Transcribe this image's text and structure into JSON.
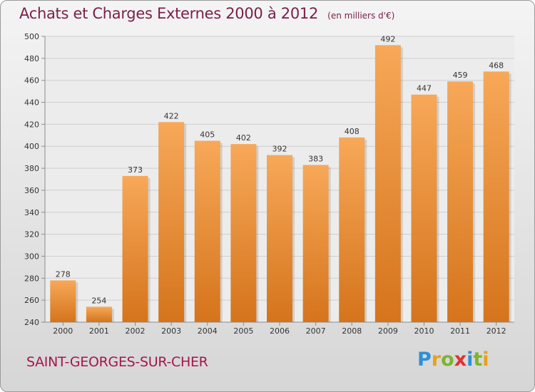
{
  "header": {
    "title": "Achats et Charges Externes 2000 à 2012",
    "unit": "(en milliers d'€)"
  },
  "commune": "SAINT-GEORGES-SUR-CHER",
  "logo": {
    "text": "Proxiti",
    "letter_colors": [
      "#2f8fd6",
      "#e8a020",
      "#7cb530",
      "#e03030",
      "#2f8fd6",
      "#7cb530",
      "#e8a020"
    ]
  },
  "colors": {
    "bar_light": "#f7a858",
    "bar_dark": "#d5741c",
    "grid": "#cfcfcf",
    "axis": "#8c8c8c"
  },
  "chart_data": {
    "type": "bar",
    "title": "Achats et Charges Externes 2000 à 2012",
    "subtitle": "(en milliers d'€)",
    "categories": [
      "2000",
      "2001",
      "2002",
      "2003",
      "2004",
      "2005",
      "2006",
      "2007",
      "2008",
      "2009",
      "2010",
      "2011",
      "2012"
    ],
    "values": [
      278,
      254,
      373,
      422,
      405,
      402,
      392,
      383,
      408,
      492,
      447,
      459,
      468
    ],
    "ylim": [
      240,
      500
    ],
    "yticks": [
      240,
      260,
      280,
      300,
      320,
      340,
      360,
      380,
      400,
      420,
      440,
      460,
      480,
      500
    ],
    "grid": true
  }
}
